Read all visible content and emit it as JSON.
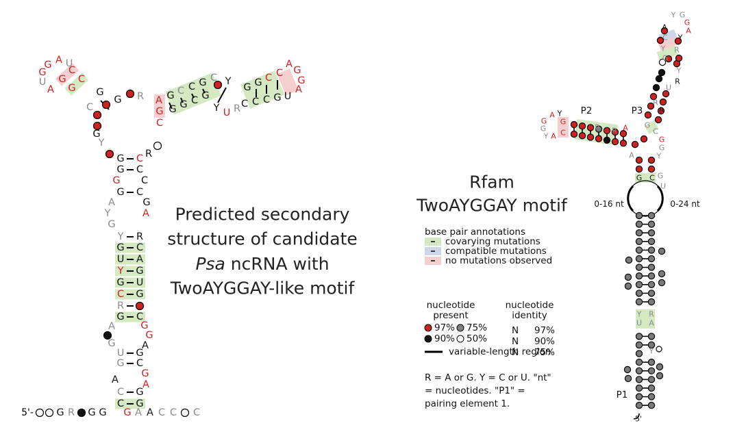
{
  "left_structure": {
    "five_prime": "5'-",
    "leader": [
      "G",
      "R",
      "G",
      "G"
    ],
    "trailer": [
      "G",
      "A",
      "A",
      "C",
      "C",
      "C"
    ],
    "lower_stem": [
      "C",
      "G",
      "C",
      "G",
      "A",
      "G",
      "A",
      "G",
      "C",
      "U",
      "G",
      "G",
      "A",
      "G",
      "A",
      "G"
    ],
    "upper_stem": [
      "G",
      "C",
      "R",
      "C",
      "G",
      "G",
      "U",
      "Y",
      "G",
      "U",
      "A",
      "G",
      "C",
      "Y",
      "R"
    ],
    "internal_loop": [
      "G",
      "Y",
      "A",
      "A",
      "G"
    ],
    "top_stem": [
      "G",
      "C",
      "G",
      "C",
      "G",
      "C",
      "G",
      "C",
      "R"
    ],
    "multiloop": [
      "Y",
      "G",
      "C",
      "G",
      "G",
      "R"
    ],
    "left_hairpin": [
      "G",
      "A",
      "U",
      "G",
      "U",
      "A",
      "C",
      "C",
      "G",
      "G"
    ],
    "right_arm": [
      "A",
      "G",
      "C",
      "G",
      "C",
      "C",
      "G",
      "C",
      "G",
      "G",
      "C",
      "G",
      "Y",
      "U",
      "R",
      "Y"
    ],
    "right_hairpin": [
      "G",
      "G",
      "C",
      "C",
      "A",
      "G",
      "G",
      "A",
      "U",
      "G",
      "C",
      "C",
      "C"
    ]
  },
  "caption": {
    "line1": "Predicted secondary",
    "line2": "structure of candidate",
    "line3_italic": "Psa",
    "line3_rest": " ncRNA with",
    "line4": "TwoAYGGAY-like motif"
  },
  "title": {
    "line1": "Rfam",
    "line2": "TwoAYGGAY motif"
  },
  "legend": {
    "bp_heading": "base pair annotations",
    "covarying": "covarying mutations",
    "compatible": "compatible mutations",
    "none": "no mutations observed",
    "present_heading1": "nucleotide",
    "present_heading2": "present",
    "present_97": "97%",
    "present_75": "75%",
    "present_90": "90%",
    "present_50": "50%",
    "identity_heading1": "nucleotide",
    "identity_heading2": "identity",
    "identity_rows": [
      {
        "symbol": "N",
        "label": "97%"
      },
      {
        "symbol": "N",
        "label": "90%"
      },
      {
        "symbol": "N",
        "label": "75%"
      }
    ],
    "variable": "variable-length region",
    "note1": "R = A or G. Y = C or U. \"nt\"",
    "note2": "= nucleotides.  \"P1\" =",
    "note3": "pairing  element 1."
  },
  "right_structure": {
    "p1_label": "P1",
    "p2_label": "P2",
    "p3_label": "P3",
    "var_left": "0-16 nt",
    "var_right": "0-24 nt",
    "five_prime": "5'",
    "p2_loop": [
      "A",
      "Y",
      "G",
      "G",
      "Y",
      "A",
      "G",
      "C"
    ],
    "p2_stem": [
      "R",
      "R",
      "A"
    ],
    "junction": [
      "G",
      "C",
      "G",
      "G",
      "Y",
      "A"
    ],
    "p3": [
      "R",
      "R",
      "U",
      "R",
      "Y",
      "Y",
      "G",
      "R",
      "C",
      "A",
      "Y",
      "G",
      "G",
      "A",
      "Y"
    ],
    "stem_top": [
      "G",
      "C",
      "G",
      "U"
    ],
    "p1": [
      "Y",
      "R",
      "U",
      "A",
      "Y"
    ]
  }
}
